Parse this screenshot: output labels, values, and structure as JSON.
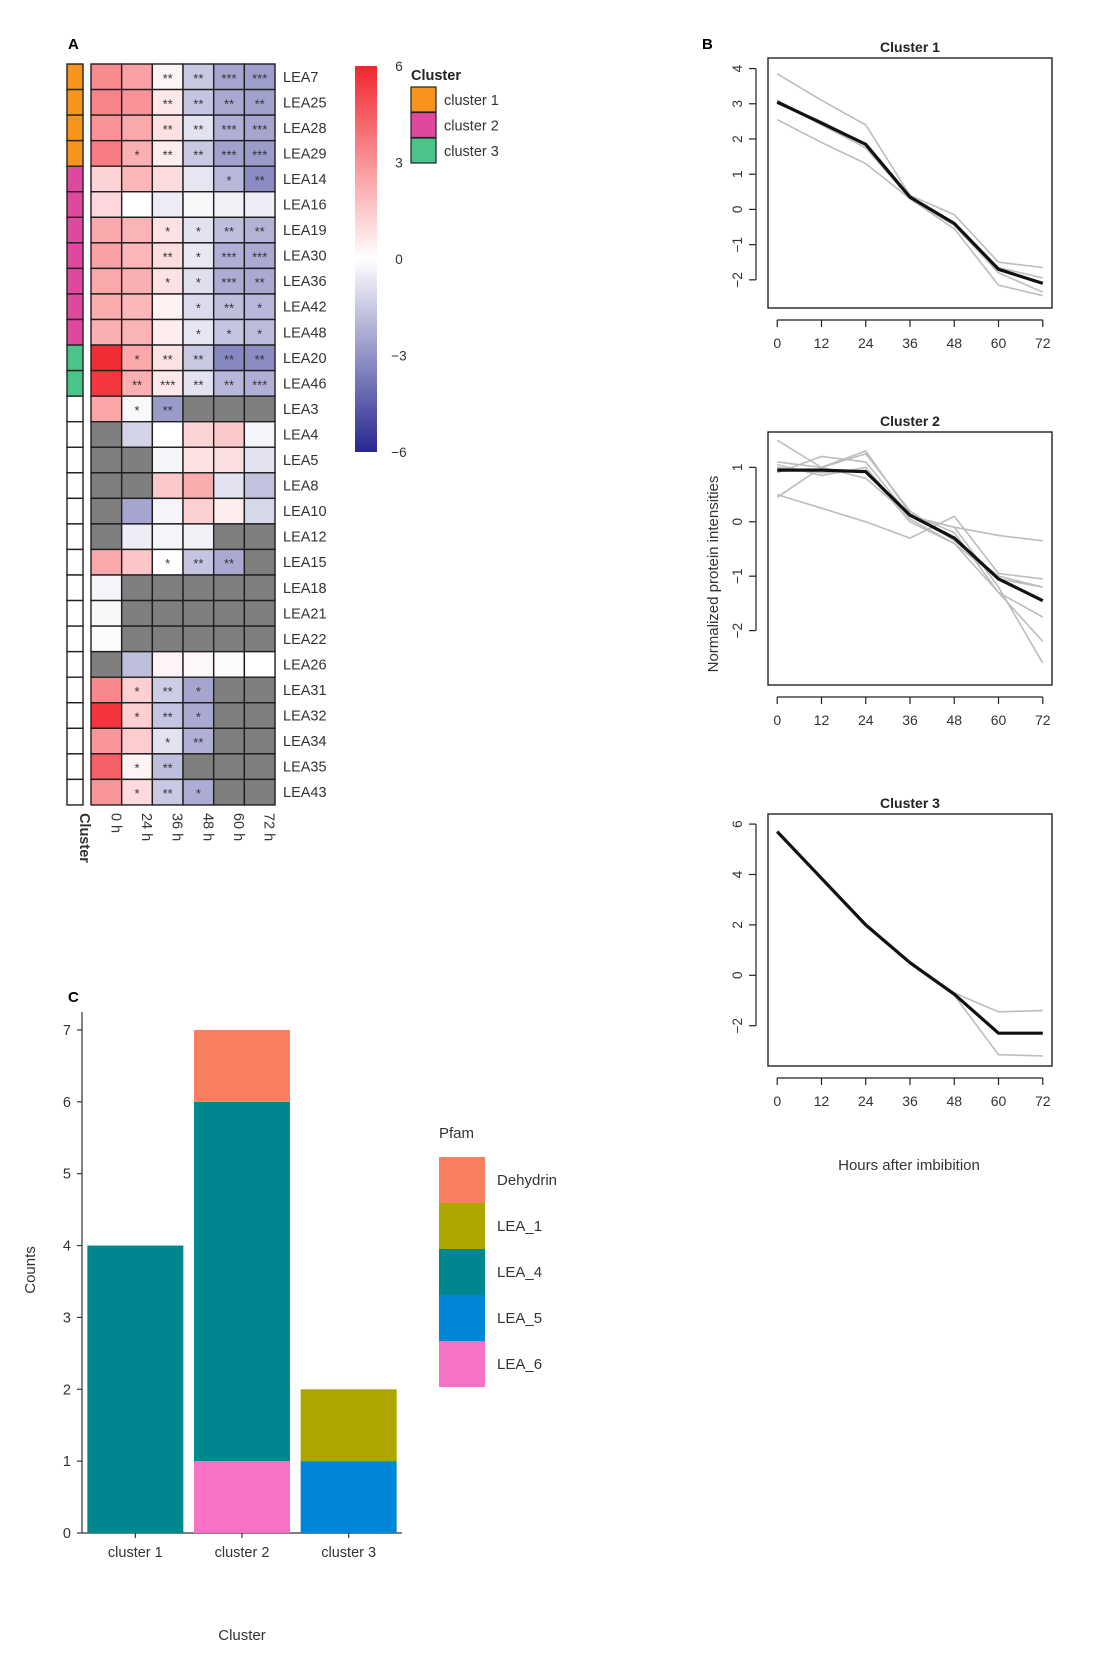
{
  "panels": {
    "a": "A",
    "b": "B",
    "c": "C"
  },
  "colors": {
    "cluster1": "#F7941D",
    "cluster2": "#E0479E",
    "cluster3": "#4BC48A",
    "na": "#7F7F7F",
    "high": "#F2262E",
    "mid": "#FFFFFF",
    "low": "#27278F",
    "Dehydrin": "#F8805E",
    "LEA_1": "#ADA500",
    "LEA_4": "#00868E",
    "LEA_5": "#0086D6",
    "LEA_6": "#F771C5"
  },
  "chart_data": [
    {
      "type": "heatmap",
      "panel": "A",
      "columns": [
        "0 h",
        "24 h",
        "36 h",
        "48 h",
        "60 h",
        "72 h"
      ],
      "rows": [
        "LEA7",
        "LEA25",
        "LEA28",
        "LEA29",
        "LEA14",
        "LEA16",
        "LEA19",
        "LEA30",
        "LEA36",
        "LEA42",
        "LEA48",
        "LEA20",
        "LEA46",
        "LEA3",
        "LEA4",
        "LEA5",
        "LEA8",
        "LEA10",
        "LEA12",
        "LEA15",
        "LEA18",
        "LEA21",
        "LEA22",
        "LEA26",
        "LEA31",
        "LEA32",
        "LEA34",
        "LEA35",
        "LEA43"
      ],
      "row_cluster": [
        1,
        1,
        1,
        1,
        2,
        2,
        2,
        2,
        2,
        2,
        2,
        3,
        3,
        0,
        0,
        0,
        0,
        0,
        0,
        0,
        0,
        0,
        0,
        0,
        0,
        0,
        0,
        0,
        0
      ],
      "cluster_annotation_label": "Cluster",
      "values": [
        [
          3.2,
          2.6,
          0.3,
          -1.5,
          -2.5,
          -2.7
        ],
        [
          3.4,
          3.0,
          0.6,
          -1.6,
          -2.4,
          -2.6
        ],
        [
          3.0,
          2.4,
          0.8,
          -0.8,
          -2.2,
          -2.5
        ],
        [
          3.6,
          2.2,
          0.5,
          -1.5,
          -2.6,
          -2.8
        ],
        [
          1.2,
          2.0,
          1.0,
          -0.7,
          -2.0,
          -3.2
        ],
        [
          1.1,
          0.0,
          -0.5,
          -0.2,
          -0.4,
          -0.5
        ],
        [
          2.4,
          2.1,
          0.8,
          -0.8,
          -1.8,
          -2.1
        ],
        [
          2.6,
          2.0,
          0.9,
          -0.6,
          -2.2,
          -2.4
        ],
        [
          2.4,
          2.2,
          0.8,
          -0.9,
          -2.3,
          -2.4
        ],
        [
          2.3,
          2.0,
          0.4,
          -1.0,
          -1.8,
          -2.0
        ],
        [
          2.2,
          2.1,
          0.5,
          -0.7,
          -1.6,
          -1.9
        ],
        [
          5.8,
          2.4,
          0.8,
          -1.5,
          -3.3,
          -3.2
        ],
        [
          5.5,
          2.2,
          0.6,
          -0.8,
          -2.0,
          -2.2
        ],
        [
          2.5,
          -0.2,
          -2.8,
          null,
          null,
          null
        ],
        [
          null,
          -1.2,
          0.0,
          1.2,
          1.5,
          -0.3
        ],
        [
          null,
          null,
          -0.3,
          0.8,
          0.9,
          -0.8
        ],
        [
          null,
          null,
          1.5,
          2.3,
          -0.8,
          -1.7
        ],
        [
          null,
          -2.5,
          -0.3,
          1.3,
          0.5,
          -1.1
        ],
        [
          null,
          -0.5,
          -0.3,
          -0.4,
          null,
          null
        ],
        [
          2.4,
          1.6,
          0.0,
          -1.6,
          -2.4,
          null
        ],
        [
          -0.3,
          null,
          null,
          null,
          null,
          null
        ],
        [
          -0.2,
          null,
          null,
          null,
          null,
          null
        ],
        [
          -0.1,
          null,
          null,
          null,
          null,
          null
        ],
        [
          null,
          -1.8,
          0.3,
          0.2,
          -0.1,
          0.0
        ],
        [
          3.3,
          1.3,
          -1.4,
          -2.5,
          null,
          null
        ],
        [
          5.6,
          1.3,
          -1.6,
          -2.4,
          null,
          null
        ],
        [
          2.9,
          1.4,
          -0.8,
          -2.2,
          null,
          null
        ],
        [
          4.4,
          0.3,
          -1.8,
          null,
          null,
          null
        ],
        [
          2.9,
          1.0,
          -1.5,
          -2.3,
          null,
          null
        ]
      ],
      "stars": [
        [
          "",
          "",
          "**",
          "**",
          "***",
          "***"
        ],
        [
          "",
          "",
          "**",
          "**",
          "**",
          "**"
        ],
        [
          "",
          "",
          "**",
          "**",
          "***",
          "***"
        ],
        [
          "",
          "*",
          "**",
          "**",
          "***",
          "***"
        ],
        [
          "",
          "",
          "",
          "",
          "*",
          "**"
        ],
        [
          "",
          "",
          "",
          "",
          "",
          ""
        ],
        [
          "",
          "",
          "*",
          "*",
          "**",
          "**"
        ],
        [
          "",
          "",
          "**",
          "*",
          "***",
          "***"
        ],
        [
          "",
          "",
          "*",
          "*",
          "***",
          "**"
        ],
        [
          "",
          "",
          "",
          "*",
          "**",
          "*"
        ],
        [
          "",
          "",
          "",
          "*",
          "*",
          "*"
        ],
        [
          "",
          "*",
          "**",
          "**",
          "**",
          "**"
        ],
        [
          "",
          "**",
          "***",
          "**",
          "**",
          "***"
        ],
        [
          "",
          "*",
          "**",
          "",
          "",
          ""
        ],
        [
          "",
          "",
          "",
          "",
          "",
          ""
        ],
        [
          "",
          "",
          "",
          "",
          "",
          ""
        ],
        [
          "",
          "",
          "",
          "",
          "",
          ""
        ],
        [
          "",
          "",
          "",
          "",
          "",
          ""
        ],
        [
          "",
          "",
          "",
          "",
          "",
          ""
        ],
        [
          "",
          "",
          "*",
          "**",
          "**",
          ""
        ],
        [
          "",
          "",
          "",
          "",
          "",
          ""
        ],
        [
          "",
          "",
          "",
          "",
          "",
          ""
        ],
        [
          "",
          "",
          "",
          "",
          "",
          ""
        ],
        [
          "",
          "",
          "",
          "",
          "",
          ""
        ],
        [
          "",
          "*",
          "**",
          "*",
          "",
          ""
        ],
        [
          "",
          "*",
          "**",
          "*",
          "",
          ""
        ],
        [
          "",
          "",
          "*",
          "**",
          "",
          ""
        ],
        [
          "",
          "*",
          "**",
          "",
          "",
          ""
        ],
        [
          "",
          "*",
          "**",
          "*",
          "",
          ""
        ]
      ],
      "colorbar": {
        "range": [
          -6,
          6
        ],
        "ticks": [
          6,
          3,
          0,
          -3,
          -6
        ],
        "tick_labels": [
          "6",
          "3",
          "0",
          "−3",
          "−6"
        ]
      },
      "legend": {
        "title": "Cluster",
        "items": [
          "cluster 1",
          "cluster 2",
          "cluster 3"
        ]
      }
    },
    {
      "type": "line",
      "panel": "B",
      "xlabel": "Hours after imbibition",
      "ylabel": "Normalized protein intensities",
      "x": [
        0,
        12,
        24,
        36,
        48,
        60,
        72
      ],
      "x_tick_labels": [
        "0",
        "12",
        "24",
        "36",
        "48",
        "60",
        "72"
      ],
      "subplots": [
        {
          "title": "Cluster 1",
          "ylim": [
            -2.8,
            4.3
          ],
          "yticks": [
            4,
            3,
            2,
            1,
            0,
            -1,
            -2
          ],
          "ytick_labels": [
            "4",
            "3",
            "2",
            "1",
            "0",
            "−1",
            "−2"
          ],
          "mean": [
            3.05,
            2.45,
            1.85,
            0.35,
            -0.4,
            -1.7,
            -2.1
          ],
          "members": [
            [
              3.85,
              3.1,
              2.4,
              0.4,
              -0.15,
              -1.5,
              -1.65
            ],
            [
              3.0,
              2.5,
              1.85,
              0.35,
              -0.4,
              -1.65,
              -1.95
            ],
            [
              3.1,
              2.4,
              1.75,
              0.3,
              -0.45,
              -1.8,
              -2.35
            ],
            [
              2.55,
              1.9,
              1.3,
              0.3,
              -0.55,
              -2.15,
              -2.45
            ]
          ]
        },
        {
          "title": "Cluster 2",
          "ylim": [
            -3.0,
            1.65
          ],
          "yticks": [
            1,
            0,
            -1,
            -2
          ],
          "ytick_labels": [
            "1",
            "0",
            "−1",
            "−2"
          ],
          "mean": [
            0.95,
            0.95,
            0.92,
            0.12,
            -0.3,
            -1.05,
            -1.45
          ],
          "members": [
            [
              1.5,
              1.0,
              0.8,
              0.1,
              -0.1,
              -1.2,
              -2.6
            ],
            [
              1.1,
              1.0,
              1.25,
              0.2,
              -0.35,
              -1.0,
              -1.2
            ],
            [
              0.45,
              1.0,
              1.3,
              0.15,
              -0.2,
              -1.3,
              -1.75
            ],
            [
              0.5,
              0.25,
              0.0,
              -0.3,
              0.1,
              -0.95,
              -1.05
            ],
            [
              1.0,
              0.9,
              0.95,
              0.0,
              -0.4,
              -1.3,
              -2.2
            ],
            [
              0.9,
              1.2,
              1.1,
              0.1,
              -0.1,
              -0.25,
              -0.35
            ],
            [
              1.05,
              0.85,
              1.0,
              0.05,
              -0.4,
              -1.05,
              -1.2
            ]
          ]
        },
        {
          "title": "Cluster 3",
          "ylim": [
            -3.6,
            6.4
          ],
          "yticks": [
            6,
            4,
            2,
            0,
            -2
          ],
          "ytick_labels": [
            "6",
            "4",
            "2",
            "0",
            "−2"
          ],
          "mean": [
            5.7,
            3.85,
            2.0,
            0.5,
            -0.75,
            -2.3,
            -2.3
          ],
          "members": [
            [
              5.72,
              3.85,
              2.05,
              0.5,
              -0.7,
              -1.45,
              -1.4
            ],
            [
              5.68,
              3.8,
              1.95,
              0.45,
              -0.8,
              -3.15,
              -3.2
            ]
          ]
        }
      ]
    },
    {
      "type": "bar",
      "panel": "C",
      "stacked": true,
      "xlabel": "Cluster",
      "ylabel": "Counts",
      "categories": [
        "cluster 1",
        "cluster 2",
        "cluster 3"
      ],
      "ylim": [
        0,
        7.25
      ],
      "yticks": [
        0,
        1,
        2,
        3,
        4,
        5,
        6,
        7
      ],
      "ytick_labels": [
        "0",
        "1",
        "2",
        "3",
        "4",
        "5",
        "6",
        "7"
      ],
      "legend_title": "Pfam",
      "legend": [
        "Dehydrin",
        "LEA_1",
        "LEA_4",
        "LEA_5",
        "LEA_6"
      ],
      "stack_order": [
        "LEA_6",
        "LEA_5",
        "LEA_4",
        "LEA_1",
        "Dehydrin"
      ],
      "series": [
        {
          "name": "Dehydrin",
          "values": [
            0,
            1,
            0
          ]
        },
        {
          "name": "LEA_1",
          "values": [
            0,
            0,
            1
          ]
        },
        {
          "name": "LEA_4",
          "values": [
            4,
            5,
            0
          ]
        },
        {
          "name": "LEA_5",
          "values": [
            0,
            0,
            1
          ]
        },
        {
          "name": "LEA_6",
          "values": [
            0,
            1,
            0
          ]
        }
      ]
    }
  ]
}
